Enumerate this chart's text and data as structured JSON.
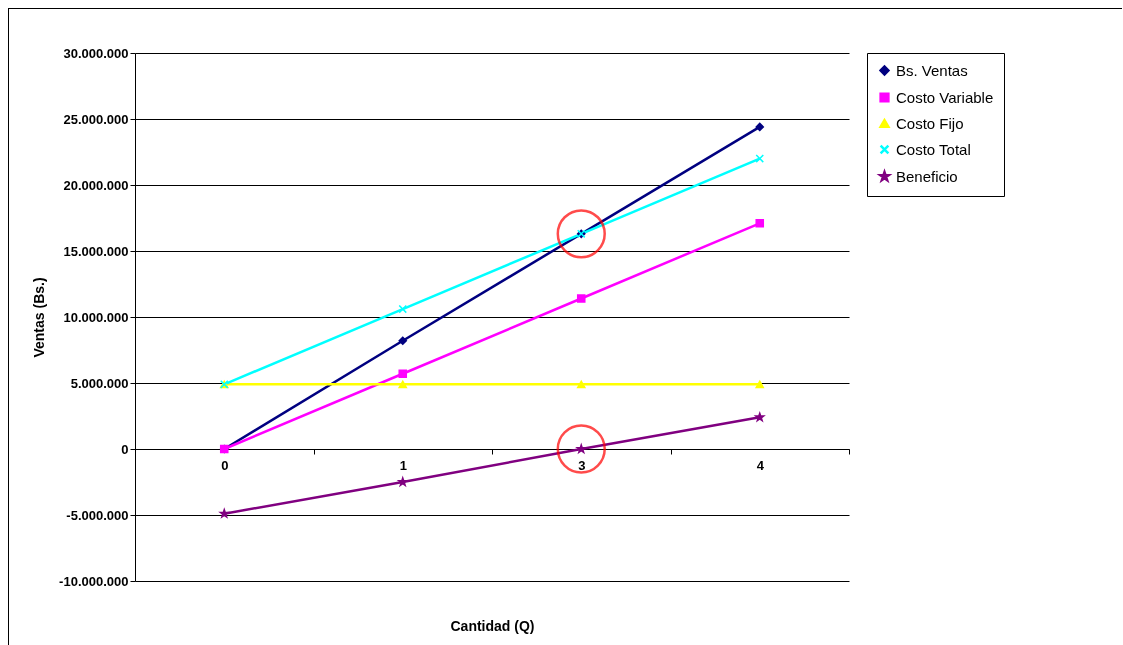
{
  "chart_data": {
    "type": "line",
    "xlabel": "Cantidad (Q)",
    "ylabel": "Ventas (Bs.)",
    "categories": [
      "0",
      "1",
      "3",
      "4"
    ],
    "series": [
      {
        "name": "Bs. Ventas",
        "color": "#000080",
        "marker": "diamond",
        "values": [
          0,
          8200000,
          16300000,
          24400000
        ]
      },
      {
        "name": "Costo Variable",
        "color": "#ff00ff",
        "marker": "square",
        "values": [
          0,
          5700000,
          11400000,
          17100000
        ]
      },
      {
        "name": "Costo Fijo",
        "color": "#ffff00",
        "marker": "triangle",
        "values": [
          4900000,
          4900000,
          4900000,
          4900000
        ]
      },
      {
        "name": "Costo Total",
        "color": "#00ffff",
        "marker": "cross",
        "values": [
          4900000,
          10600000,
          16300000,
          22000000
        ]
      },
      {
        "name": "Beneficio",
        "color": "#800080",
        "marker": "star",
        "values": [
          -4900000,
          -2500000,
          0,
          2400000
        ]
      }
    ],
    "ylim": [
      -10000000,
      30000000
    ],
    "yticks": [
      {
        "value": -10000000,
        "label": "-10.000.000"
      },
      {
        "value": -5000000,
        "label": "-5.000.000"
      },
      {
        "value": 0,
        "label": "0"
      },
      {
        "value": 5000000,
        "label": "5.000.000"
      },
      {
        "value": 10000000,
        "label": "10.000.000"
      },
      {
        "value": 15000000,
        "label": "15.000.000"
      },
      {
        "value": 20000000,
        "label": "20.000.000"
      },
      {
        "value": 25000000,
        "label": "25.000.000"
      },
      {
        "value": 30000000,
        "label": "30.000.000"
      }
    ],
    "grid": "y",
    "legend": "right",
    "line_style": "solid"
  }
}
